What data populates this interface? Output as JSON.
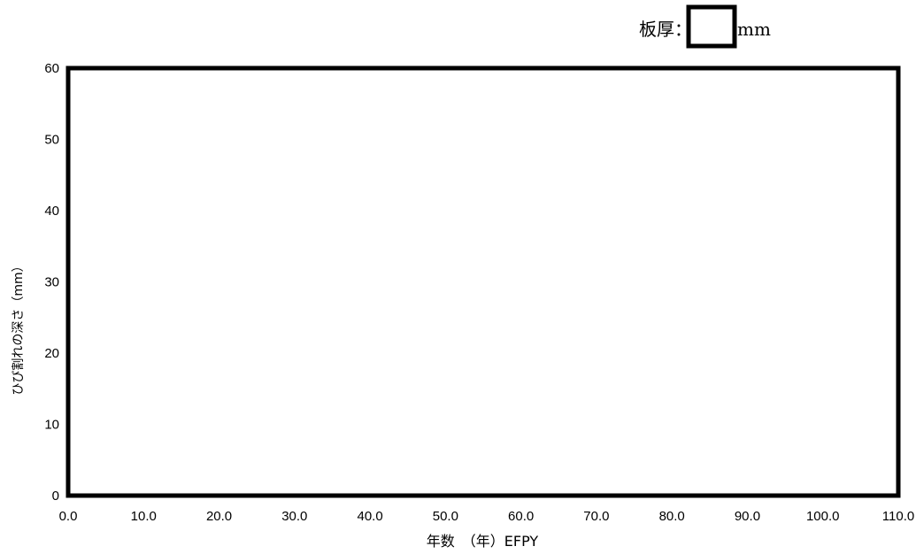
{
  "header": {
    "thickness_label": "板厚：",
    "thickness_value": "",
    "thickness_unit": "mm"
  },
  "chart_data": {
    "type": "line",
    "title": "",
    "xlabel": "年数　（年）EFPY",
    "ylabel": "ひび割れの深さ（mm）",
    "xlim": [
      0,
      110
    ],
    "ylim": [
      0,
      60
    ],
    "x_ticks": [
      "0.0",
      "10.0",
      "20.0",
      "30.0",
      "40.0",
      "50.0",
      "60.0",
      "70.0",
      "80.0",
      "90.0",
      "100.0",
      "110.0"
    ],
    "y_ticks": [
      "0",
      "10",
      "20",
      "30",
      "40",
      "50",
      "60"
    ],
    "grid": false,
    "series": []
  }
}
